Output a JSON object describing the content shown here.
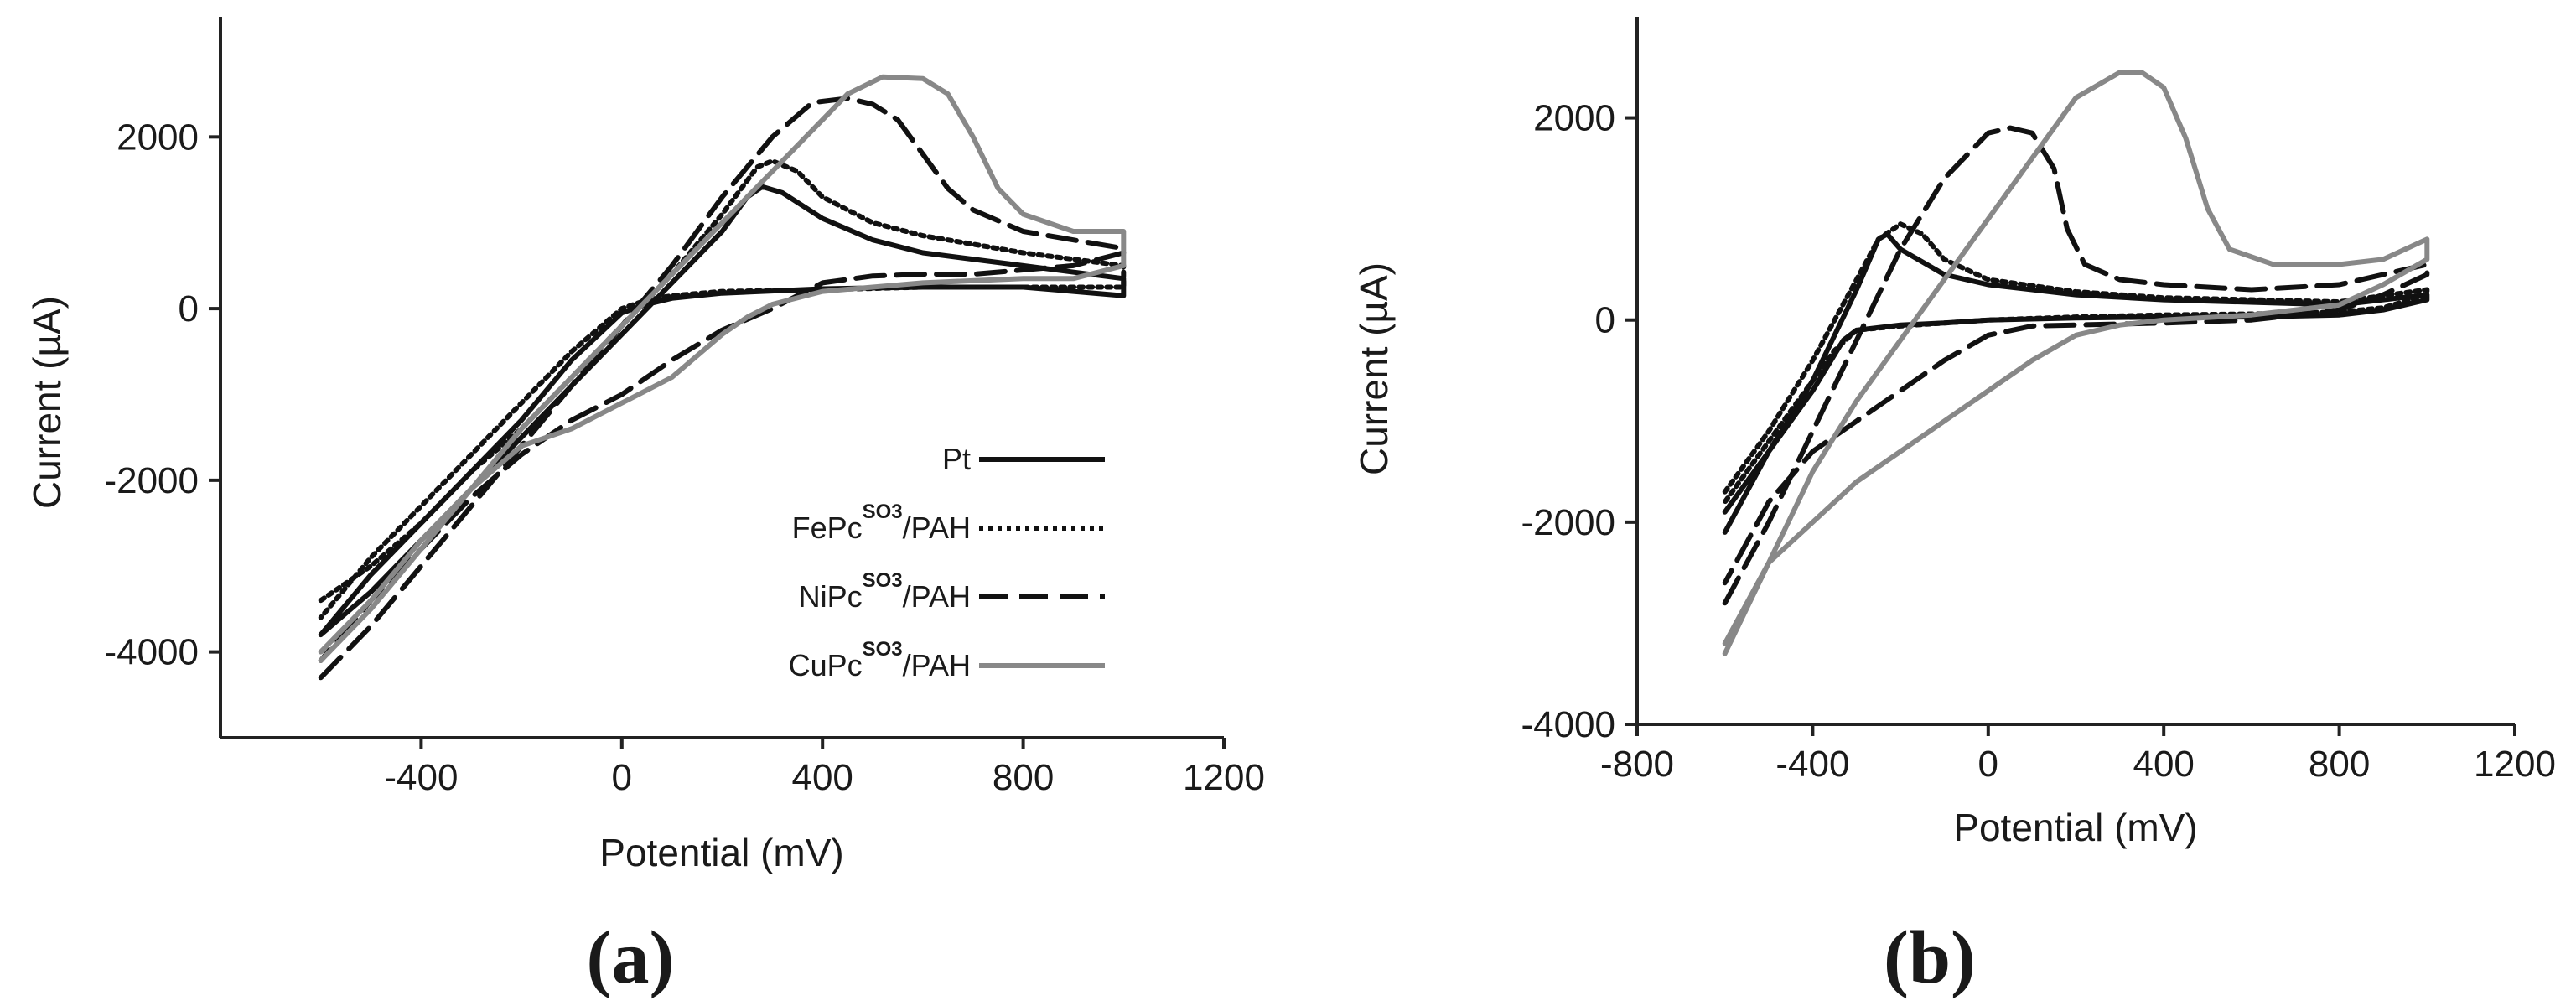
{
  "panel_labels": [
    "(a)",
    "(b)"
  ],
  "styles": {
    "Pt": {
      "color": "#111111",
      "dash": "",
      "width": 6
    },
    "FePc": {
      "color": "#111111",
      "dash": "5 6",
      "width": 6
    },
    "NiPc": {
      "color": "#111111",
      "dash": "34 14",
      "width": 6
    },
    "CuPc": {
      "color": "#888888",
      "dash": "",
      "width": 6
    }
  },
  "legend": {
    "entries": [
      {
        "key": "Pt",
        "pre": "Pt",
        "sup": "",
        "post": ""
      },
      {
        "key": "FePc",
        "pre": "FePc",
        "sup": "SO3",
        "post": "/PAH"
      },
      {
        "key": "NiPc",
        "pre": "NiPc",
        "sup": "SO3",
        "post": "/PAH"
      },
      {
        "key": "CuPc",
        "pre": "CuPc",
        "sup": "SO3",
        "post": "/PAH"
      }
    ]
  },
  "chart_data": [
    {
      "type": "line",
      "xlabel": "Potential (mV)",
      "ylabel": "Current (µA)",
      "xlim": [
        -800,
        1200
      ],
      "ylim": [
        -5000,
        3400
      ],
      "xticks": [
        -400,
        0,
        400,
        800,
        1200
      ],
      "yticks": [
        -4000,
        -2000,
        0,
        2000
      ],
      "series": [
        {
          "name": "Pt",
          "style": "Pt",
          "points": [
            [
              -600,
              -3800
            ],
            [
              -500,
              -3300
            ],
            [
              -400,
              -2700
            ],
            [
              -300,
              -2100
            ],
            [
              -200,
              -1500
            ],
            [
              -100,
              -900
            ],
            [
              0,
              -300
            ],
            [
              100,
              300
            ],
            [
              200,
              900
            ],
            [
              250,
              1300
            ],
            [
              280,
              1420
            ],
            [
              320,
              1350
            ],
            [
              400,
              1050
            ],
            [
              500,
              800
            ],
            [
              600,
              650
            ],
            [
              800,
              500
            ],
            [
              1000,
              350
            ],
            [
              1000,
              150
            ],
            [
              900,
              200
            ],
            [
              800,
              250
            ],
            [
              600,
              250
            ],
            [
              400,
              230
            ],
            [
              200,
              180
            ],
            [
              100,
              120
            ],
            [
              50,
              50
            ],
            [
              0,
              -50
            ],
            [
              -100,
              -600
            ],
            [
              -200,
              -1300
            ],
            [
              -300,
              -1900
            ],
            [
              -400,
              -2500
            ],
            [
              -500,
              -3100
            ],
            [
              -600,
              -3800
            ]
          ]
        },
        {
          "name": "FePc SO3/PAH",
          "style": "FePc",
          "points": [
            [
              -600,
              -3400
            ],
            [
              -500,
              -3000
            ],
            [
              -400,
              -2500
            ],
            [
              -300,
              -1900
            ],
            [
              -200,
              -1400
            ],
            [
              -100,
              -800
            ],
            [
              0,
              -200
            ],
            [
              100,
              400
            ],
            [
              200,
              1100
            ],
            [
              270,
              1650
            ],
            [
              300,
              1720
            ],
            [
              350,
              1600
            ],
            [
              400,
              1300
            ],
            [
              500,
              1000
            ],
            [
              600,
              850
            ],
            [
              800,
              650
            ],
            [
              1000,
              500
            ],
            [
              1000,
              250
            ],
            [
              900,
              250
            ],
            [
              800,
              250
            ],
            [
              600,
              250
            ],
            [
              400,
              220
            ],
            [
              200,
              200
            ],
            [
              100,
              150
            ],
            [
              50,
              100
            ],
            [
              0,
              0
            ],
            [
              -100,
              -500
            ],
            [
              -200,
              -1100
            ],
            [
              -300,
              -1700
            ],
            [
              -400,
              -2300
            ],
            [
              -500,
              -2900
            ],
            [
              -600,
              -3600
            ]
          ]
        },
        {
          "name": "NiPc SO3/PAH",
          "style": "NiPc",
          "points": [
            [
              -600,
              -4300
            ],
            [
              -500,
              -3700
            ],
            [
              -400,
              -3000
            ],
            [
              -300,
              -2300
            ],
            [
              -200,
              -1600
            ],
            [
              -100,
              -900
            ],
            [
              0,
              -200
            ],
            [
              100,
              500
            ],
            [
              200,
              1300
            ],
            [
              300,
              2000
            ],
            [
              380,
              2400
            ],
            [
              450,
              2450
            ],
            [
              500,
              2380
            ],
            [
              550,
              2200
            ],
            [
              600,
              1800
            ],
            [
              650,
              1400
            ],
            [
              700,
              1150
            ],
            [
              800,
              900
            ],
            [
              900,
              800
            ],
            [
              1000,
              700
            ],
            [
              1000,
              650
            ],
            [
              900,
              500
            ],
            [
              800,
              450
            ],
            [
              700,
              400
            ],
            [
              600,
              400
            ],
            [
              500,
              380
            ],
            [
              400,
              300
            ],
            [
              350,
              150
            ],
            [
              300,
              0
            ],
            [
              200,
              -250
            ],
            [
              100,
              -600
            ],
            [
              0,
              -1000
            ],
            [
              -100,
              -1300
            ],
            [
              -200,
              -1700
            ],
            [
              -300,
              -2200
            ],
            [
              -400,
              -2800
            ],
            [
              -500,
              -3400
            ],
            [
              -600,
              -4100
            ]
          ]
        },
        {
          "name": "CuPc SO3/PAH",
          "style": "CuPc",
          "points": [
            [
              -600,
              -4100
            ],
            [
              -500,
              -3500
            ],
            [
              -400,
              -2800
            ],
            [
              -300,
              -2100
            ],
            [
              -200,
              -1400
            ],
            [
              -100,
              -800
            ],
            [
              0,
              -200
            ],
            [
              100,
              400
            ],
            [
              200,
              1000
            ],
            [
              300,
              1600
            ],
            [
              400,
              2200
            ],
            [
              450,
              2500
            ],
            [
              520,
              2700
            ],
            [
              600,
              2680
            ],
            [
              650,
              2500
            ],
            [
              700,
              2000
            ],
            [
              750,
              1400
            ],
            [
              800,
              1100
            ],
            [
              900,
              900
            ],
            [
              1000,
              900
            ],
            [
              1000,
              500
            ],
            [
              900,
              350
            ],
            [
              800,
              350
            ],
            [
              600,
              300
            ],
            [
              400,
              200
            ],
            [
              300,
              50
            ],
            [
              250,
              -100
            ],
            [
              200,
              -300
            ],
            [
              100,
              -800
            ],
            [
              0,
              -1100
            ],
            [
              -100,
              -1400
            ],
            [
              -200,
              -1600
            ],
            [
              -300,
              -2100
            ],
            [
              -400,
              -2700
            ],
            [
              -500,
              -3400
            ],
            [
              -600,
              -4000
            ]
          ]
        }
      ]
    },
    {
      "type": "line",
      "xlabel": "Potential (mV)",
      "ylabel": "Current (µA)",
      "xlim": [
        -800,
        1200
      ],
      "ylim": [
        -4000,
        3000
      ],
      "xticks": [
        -800,
        -400,
        0,
        400,
        800,
        1200
      ],
      "yticks": [
        -4000,
        -2000,
        0,
        2000
      ],
      "series": [
        {
          "name": "Pt",
          "style": "Pt",
          "points": [
            [
              -600,
              -2100
            ],
            [
              -500,
              -1300
            ],
            [
              -400,
              -600
            ],
            [
              -300,
              300
            ],
            [
              -250,
              800
            ],
            [
              -230,
              850
            ],
            [
              -200,
              700
            ],
            [
              -100,
              450
            ],
            [
              0,
              350
            ],
            [
              200,
              250
            ],
            [
              400,
              200
            ],
            [
              800,
              150
            ],
            [
              1000,
              250
            ],
            [
              1000,
              200
            ],
            [
              900,
              100
            ],
            [
              800,
              50
            ],
            [
              600,
              30
            ],
            [
              400,
              30
            ],
            [
              200,
              20
            ],
            [
              0,
              0
            ],
            [
              -100,
              -30
            ],
            [
              -200,
              -50
            ],
            [
              -300,
              -100
            ],
            [
              -330,
              -200
            ],
            [
              -400,
              -700
            ],
            [
              -500,
              -1300
            ],
            [
              -600,
              -1900
            ]
          ]
        },
        {
          "name": "FePc SO3/PAH",
          "style": "FePc",
          "points": [
            [
              -600,
              -1700
            ],
            [
              -500,
              -1100
            ],
            [
              -400,
              -400
            ],
            [
              -300,
              400
            ],
            [
              -250,
              800
            ],
            [
              -200,
              950
            ],
            [
              -150,
              850
            ],
            [
              -100,
              600
            ],
            [
              0,
              400
            ],
            [
              200,
              280
            ],
            [
              400,
              220
            ],
            [
              800,
              180
            ],
            [
              1000,
              300
            ],
            [
              1000,
              250
            ],
            [
              900,
              120
            ],
            [
              800,
              80
            ],
            [
              600,
              60
            ],
            [
              400,
              50
            ],
            [
              200,
              30
            ],
            [
              0,
              0
            ],
            [
              -100,
              -30
            ],
            [
              -200,
              -60
            ],
            [
              -300,
              -100
            ],
            [
              -350,
              -300
            ],
            [
              -400,
              -600
            ],
            [
              -500,
              -1200
            ],
            [
              -600,
              -1800
            ]
          ]
        },
        {
          "name": "NiPc SO3/PAH",
          "style": "NiPc",
          "points": [
            [
              -600,
              -2800
            ],
            [
              -500,
              -2000
            ],
            [
              -400,
              -1100
            ],
            [
              -300,
              -200
            ],
            [
              -200,
              700
            ],
            [
              -100,
              1400
            ],
            [
              0,
              1850
            ],
            [
              50,
              1900
            ],
            [
              100,
              1850
            ],
            [
              150,
              1500
            ],
            [
              180,
              900
            ],
            [
              220,
              550
            ],
            [
              300,
              400
            ],
            [
              400,
              350
            ],
            [
              600,
              300
            ],
            [
              800,
              350
            ],
            [
              1000,
              550
            ],
            [
              1000,
              450
            ],
            [
              900,
              250
            ],
            [
              800,
              100
            ],
            [
              600,
              0
            ],
            [
              400,
              -30
            ],
            [
              200,
              -50
            ],
            [
              100,
              -60
            ],
            [
              0,
              -150
            ],
            [
              -100,
              -400
            ],
            [
              -200,
              -700
            ],
            [
              -300,
              -1000
            ],
            [
              -400,
              -1300
            ],
            [
              -500,
              -1800
            ],
            [
              -600,
              -2600
            ]
          ]
        },
        {
          "name": "CuPc SO3/PAH",
          "style": "CuPc",
          "points": [
            [
              -600,
              -3300
            ],
            [
              -500,
              -2400
            ],
            [
              -400,
              -1500
            ],
            [
              -300,
              -800
            ],
            [
              -200,
              -200
            ],
            [
              -100,
              400
            ],
            [
              0,
              1000
            ],
            [
              100,
              1600
            ],
            [
              200,
              2200
            ],
            [
              300,
              2450
            ],
            [
              350,
              2450
            ],
            [
              400,
              2300
            ],
            [
              450,
              1800
            ],
            [
              500,
              1100
            ],
            [
              550,
              700
            ],
            [
              650,
              550
            ],
            [
              800,
              550
            ],
            [
              900,
              600
            ],
            [
              1000,
              800
            ],
            [
              1000,
              600
            ],
            [
              900,
              350
            ],
            [
              800,
              150
            ],
            [
              600,
              50
            ],
            [
              400,
              0
            ],
            [
              300,
              -50
            ],
            [
              200,
              -150
            ],
            [
              100,
              -400
            ],
            [
              0,
              -700
            ],
            [
              -100,
              -1000
            ],
            [
              -200,
              -1300
            ],
            [
              -300,
              -1600
            ],
            [
              -400,
              -2000
            ],
            [
              -500,
              -2400
            ],
            [
              -600,
              -3200
            ]
          ]
        }
      ]
    }
  ]
}
